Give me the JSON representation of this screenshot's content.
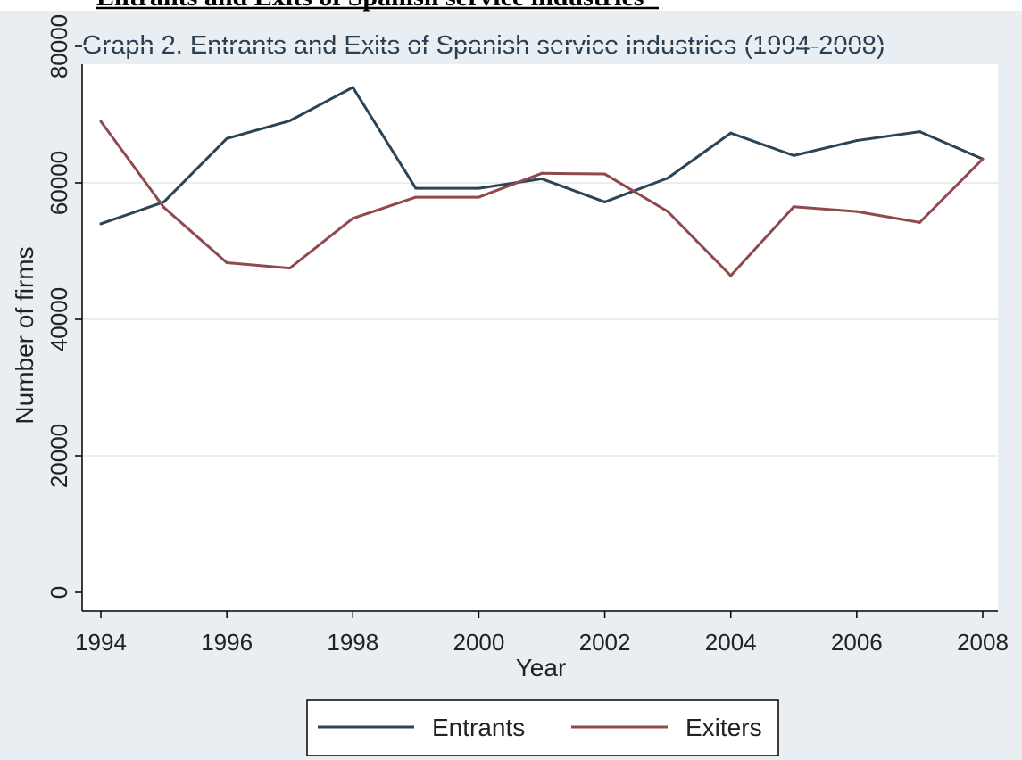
{
  "document": {
    "heading": "Entrants and Exits of Spanish service industries"
  },
  "chart_data": {
    "type": "line",
    "title": "Graph 2. Entrants and Exits of Spanish service industries (1994-2008)",
    "xlabel": "Year",
    "ylabel": "Number of firms",
    "x": [
      1994,
      1995,
      1996,
      1997,
      1998,
      1999,
      2000,
      2001,
      2002,
      2003,
      2004,
      2005,
      2006,
      2007,
      2008
    ],
    "xticks": [
      "1994",
      "1996",
      "1998",
      "2000",
      "2002",
      "2004",
      "2006",
      "2008"
    ],
    "yticks": [
      "0",
      "20000",
      "40000",
      "60000",
      "80000"
    ],
    "xlim": [
      1994,
      2008
    ],
    "ylim": [
      0,
      80000
    ],
    "grid": true,
    "legend_position": "bottom",
    "series": [
      {
        "name": "Entrants",
        "color": "#2b4456",
        "values": [
          54000,
          57200,
          66500,
          69100,
          74000,
          59200,
          59200,
          60600,
          57200,
          60700,
          67300,
          64000,
          66200,
          67500,
          63500
        ]
      },
      {
        "name": "Exiters",
        "color": "#8f4a4e",
        "values": [
          69000,
          56400,
          48300,
          47500,
          54800,
          57900,
          57900,
          61400,
          61300,
          55800,
          46400,
          56500,
          55800,
          54200,
          63500
        ]
      }
    ]
  }
}
